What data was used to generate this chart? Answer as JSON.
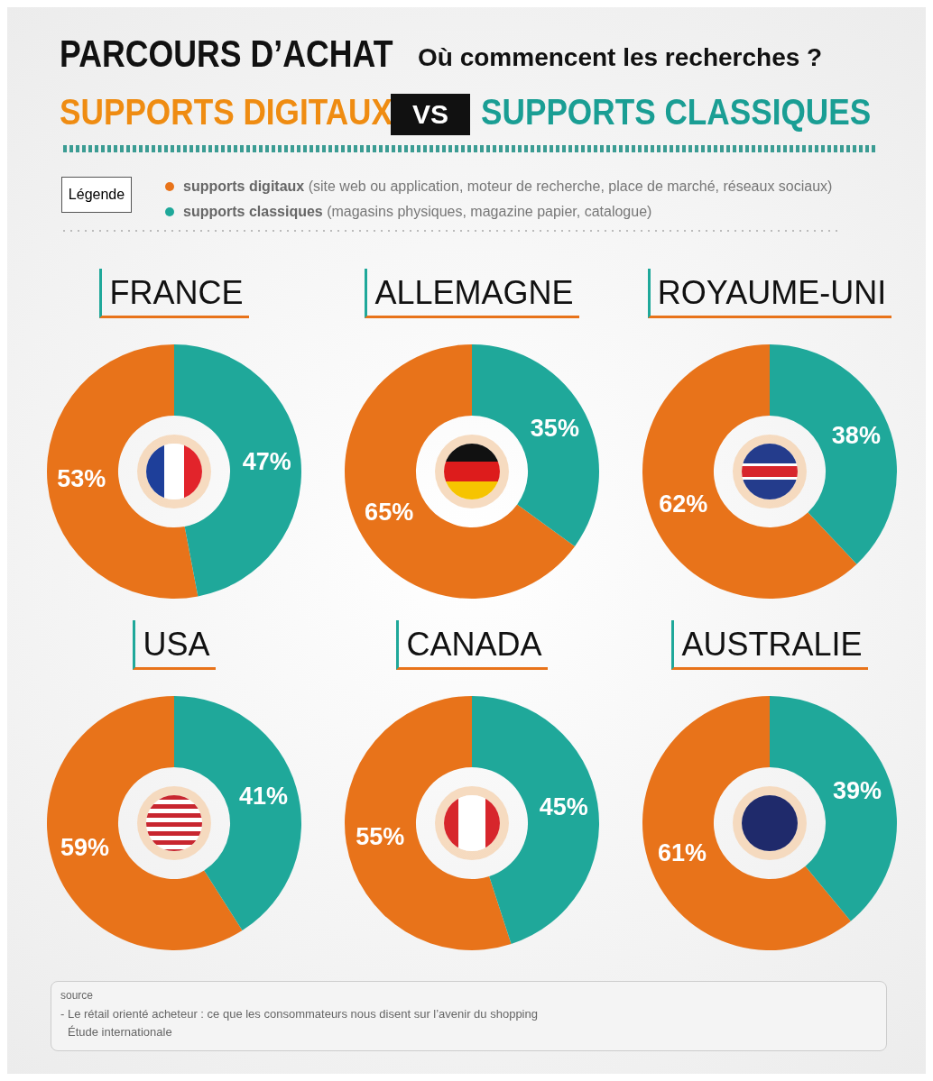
{
  "chart_data": [
    {
      "type": "other",
      "title": "PARCOURS D’ACHAT",
      "subtitle": "Où commencent les recherches ?",
      "annotations": [
        "SUPPORTS DIGITAUX",
        "VS",
        "SUPPORTS CLASSIQUES",
        "Légende",
        "source",
        "- Le rétail orienté acheteur :  ce que les consommateurs nous disent sur l’avenir du shopping",
        "Étude internationale"
      ]
    },
    {
      "type": "donut",
      "title": "FRANCE",
      "categories": [
        "supports digitaux (site web ou application, moteur de recherche, place de marché, réseaux sociaux)",
        "supports classiques (magasins physiques, magazine papier, catalogue)"
      ],
      "values": [
        53,
        47
      ],
      "colors": [
        "#e8731a",
        "#1fa89a"
      ],
      "value_labels": [
        "53%",
        "47%"
      ],
      "legend": "top"
    },
    {
      "type": "donut",
      "title": "ALLEMAGNE",
      "categories": [
        null,
        null
      ],
      "values": [
        65,
        35
      ],
      "colors": [
        "#e8731a",
        "#1fa89a"
      ],
      "value_labels": [
        "65%",
        "35%"
      ]
    },
    {
      "type": "donut",
      "title": "ROYAUME-UNI",
      "categories": [
        null,
        null
      ],
      "values": [
        62,
        38
      ],
      "colors": [
        "#e8731a",
        "#1fa89a"
      ],
      "value_labels": [
        "62%",
        "38%"
      ]
    },
    {
      "type": "donut",
      "title": "USA",
      "categories": [
        null,
        null
      ],
      "values": [
        59,
        41
      ],
      "colors": [
        "#e8731a",
        "#1fa89a"
      ],
      "value_labels": [
        "59%",
        "41%"
      ]
    },
    {
      "type": "donut",
      "title": "CANADA",
      "categories": [
        null,
        null
      ],
      "values": [
        55,
        45
      ],
      "colors": [
        "#e8731a",
        "#1fa89a"
      ],
      "value_labels": [
        "55%",
        "45%"
      ]
    },
    {
      "type": "donut",
      "title": "AUSTRALIE",
      "categories": [
        null,
        null
      ],
      "values": [
        61,
        39
      ],
      "colors": [
        "#e8731a",
        "#1fa89a"
      ],
      "value_labels": [
        "61%",
        "39%"
      ]
    }
  ]
}
